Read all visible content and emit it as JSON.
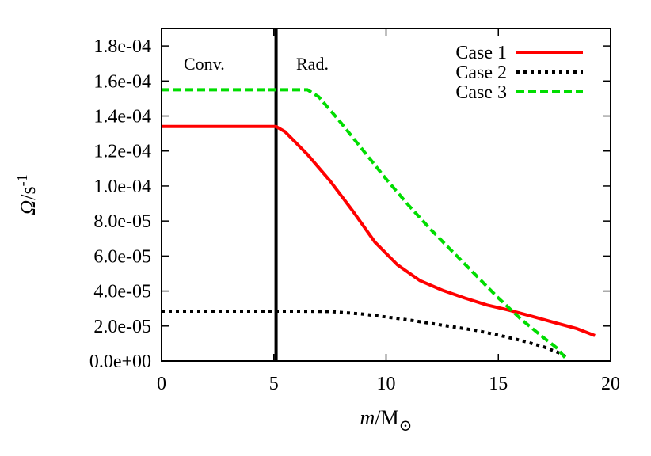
{
  "chart_data": {
    "type": "line",
    "xlabel": {
      "italic": "m",
      "rest": "/M",
      "sub": "⊙"
    },
    "ylabel": {
      "italic": "Ω",
      "rest": "/s",
      "sup": "-1"
    },
    "xlim": [
      0,
      20
    ],
    "ylim": [
      0,
      0.00019
    ],
    "x_ticks": [
      0,
      5,
      10,
      15,
      20
    ],
    "x_tick_labels": [
      "0",
      "5",
      "10",
      "15",
      "20"
    ],
    "y_ticks": [
      0,
      2e-05,
      4e-05,
      6e-05,
      8e-05,
      0.0001,
      0.00012,
      0.00014,
      0.00016,
      0.00018
    ],
    "y_tick_labels": [
      "0.0e+00",
      "2.0e-05",
      "4.0e-05",
      "6.0e-05",
      "8.0e-05",
      "1.0e-04",
      "1.2e-04",
      "1.4e-04",
      "1.6e-04",
      "1.8e-04"
    ],
    "grid": false,
    "legend_position": "top-right",
    "regions": [
      {
        "label": "Conv.",
        "boundary_x": 5.1
      },
      {
        "label": "Rad."
      }
    ],
    "series": [
      {
        "name": "Case 1",
        "color": "#ff0000",
        "style": "solid",
        "x": [
          0,
          5.1,
          5.5,
          6.5,
          7.5,
          8.5,
          9.5,
          10.5,
          11.5,
          12.5,
          13.5,
          14.5,
          15.5,
          16.5,
          17.5,
          18.5,
          19.3
        ],
        "y": [
          0.000134,
          0.000134,
          0.000131,
          0.000118,
          0.000103,
          8.6e-05,
          6.8e-05,
          5.5e-05,
          4.6e-05,
          4.05e-05,
          3.6e-05,
          3.2e-05,
          2.9e-05,
          2.55e-05,
          2.2e-05,
          1.85e-05,
          1.45e-05
        ]
      },
      {
        "name": "Case 2",
        "color": "#000000",
        "style": "dotted",
        "x": [
          0,
          3,
          6,
          7.5,
          9,
          10,
          11,
          12,
          13,
          14,
          15,
          16,
          17,
          17.8,
          18.1
        ],
        "y": [
          2.85e-05,
          2.85e-05,
          2.85e-05,
          2.83e-05,
          2.68e-05,
          2.52e-05,
          2.35e-05,
          2.15e-05,
          1.95e-05,
          1.75e-05,
          1.48e-05,
          1.18e-05,
          8.2e-06,
          4.2e-06,
          1.5e-06
        ]
      },
      {
        "name": "Case 3",
        "color": "#00dd00",
        "style": "dashed",
        "x": [
          0,
          6.5,
          7,
          8,
          9,
          10,
          11,
          12,
          13,
          14,
          15,
          16,
          17,
          17.6,
          18
        ],
        "y": [
          0.000155,
          0.000155,
          0.000151,
          0.000136,
          0.00012,
          0.000104,
          8.9e-05,
          7.5e-05,
          6.2e-05,
          4.9e-05,
          3.6e-05,
          2.4e-05,
          1.35e-05,
          7.5e-06,
          1.5e-06
        ]
      }
    ]
  }
}
